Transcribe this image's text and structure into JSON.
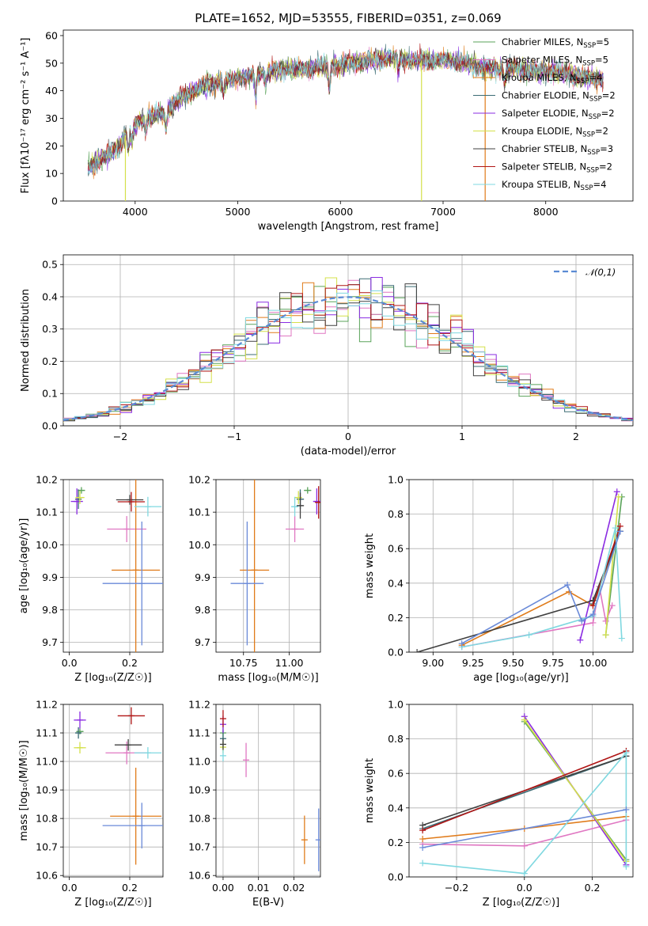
{
  "title": "PLATE=1652, MJD=53555, FIBERID=0351, z=0.069",
  "models": [
    {
      "name": "Chabrier MILES, N",
      "sub": "SSP",
      "tail": "=5",
      "color": "#5aa35a"
    },
    {
      "name": "Salpeter MILES, N",
      "sub": "SSP",
      "tail": "=5",
      "color": "#e077c2"
    },
    {
      "name": "Kroupa MILES, N",
      "sub": "SSP",
      "tail": "=4",
      "color": "#e07b1a"
    },
    {
      "name": "Chabrier ELODIE, N",
      "sub": "SSP",
      "tail": "=2",
      "color": "#3b6b74"
    },
    {
      "name": "Salpeter ELODIE, N",
      "sub": "SSP",
      "tail": "=2",
      "color": "#8a2be2"
    },
    {
      "name": "Kroupa ELODIE, N",
      "sub": "SSP",
      "tail": "=2",
      "color": "#d4e04a"
    },
    {
      "name": "Chabrier STELIB, N",
      "sub": "SSP",
      "tail": "=3",
      "color": "#404040"
    },
    {
      "name": "Salpeter STELIB, N",
      "sub": "SSP",
      "tail": "=2",
      "color": "#b01515"
    },
    {
      "name": "Kroupa STELIB, N",
      "sub": "SSP",
      "tail": "=4",
      "color": "#7fd8e0"
    }
  ],
  "extra_colors": {
    "blue": "#6a8ad8",
    "line_gray": "#4d4d4d"
  },
  "chart_data": [
    {
      "type": "line",
      "panel": "spectrum",
      "xlabel": "wavelength [Angstrom, rest frame]",
      "ylabel": "Flux [f_λ10^-17 erg cm^-2 s^-1 A^-1]",
      "xlim": [
        3300,
        8850
      ],
      "ylim": [
        0,
        62
      ],
      "xticks": [
        4000,
        5000,
        6000,
        7000,
        8000
      ],
      "yticks": [
        0,
        10,
        20,
        30,
        40,
        50,
        60
      ],
      "x_range": [
        3540,
        8560
      ],
      "continuum": [
        [
          3540,
          12
        ],
        [
          3700,
          16
        ],
        [
          3850,
          20
        ],
        [
          3950,
          27
        ],
        [
          4100,
          30
        ],
        [
          4300,
          32
        ],
        [
          4450,
          38
        ],
        [
          4700,
          42
        ],
        [
          4900,
          44
        ],
        [
          5100,
          45
        ],
        [
          5300,
          47
        ],
        [
          5500,
          48
        ],
        [
          5700,
          48
        ],
        [
          5900,
          49
        ],
        [
          6100,
          50
        ],
        [
          6300,
          51
        ],
        [
          6500,
          52
        ],
        [
          6700,
          51
        ],
        [
          6900,
          51
        ],
        [
          7100,
          51
        ],
        [
          7300,
          49
        ],
        [
          7500,
          48
        ],
        [
          7700,
          48
        ],
        [
          7900,
          47
        ],
        [
          8100,
          47
        ],
        [
          8300,
          45
        ],
        [
          8560,
          44
        ]
      ],
      "spikes": [
        {
          "x": 3905,
          "color": "#d4e04a"
        },
        {
          "x": 6790,
          "color": "#d4e04a"
        },
        {
          "x": 7410,
          "color": "#e07b1a"
        }
      ],
      "grid": false,
      "legend": "top-right"
    },
    {
      "type": "histogram",
      "panel": "residuals",
      "xlabel": "(data-model)/error",
      "ylabel": "Normed distribution",
      "xlim": [
        -2.5,
        2.5
      ],
      "ylim": [
        0,
        0.53
      ],
      "xticks": [
        -2,
        -1,
        0,
        1,
        2
      ],
      "yticks": [
        0.0,
        0.1,
        0.2,
        0.3,
        0.4,
        0.5
      ],
      "bin_width": 0.1,
      "reference": {
        "label": "𝒩(0,1)",
        "color": "#5b8bd4",
        "style": "dashed",
        "mean": 0,
        "sigma": 1
      },
      "grid": true,
      "legend": "top-right"
    },
    {
      "type": "scatter",
      "panel": "age-vs-Z",
      "xlabel": "Z [log₁₀(Z/Z☉)]",
      "ylabel": "age  [log₁₀(age/yr)]",
      "xlim": [
        -0.02,
        0.31
      ],
      "ylim": [
        9.67,
        10.2
      ],
      "xticks": [
        0.0,
        0.2
      ],
      "yticks": [
        9.7,
        9.8,
        9.9,
        10.0,
        10.1,
        10.2
      ],
      "points": [
        {
          "x": 0.04,
          "y": 10.167,
          "xerr": 0.012,
          "yerr": 0.01,
          "color": "#5aa35a"
        },
        {
          "x": 0.19,
          "y": 10.048,
          "xerr": 0.065,
          "yerr": 0.04,
          "color": "#e077c2"
        },
        {
          "x": 0.22,
          "y": 9.922,
          "xerr": 0.08,
          "yerr": 0.31,
          "color": "#e07b1a"
        },
        {
          "x": 0.03,
          "y": 10.14,
          "xerr": 0.01,
          "yerr": 0.03,
          "color": "#3b6b74"
        },
        {
          "x": 0.025,
          "y": 10.133,
          "xerr": 0.02,
          "yerr": 0.04,
          "color": "#8a2be2"
        },
        {
          "x": 0.035,
          "y": 10.145,
          "xerr": 0.015,
          "yerr": 0.02,
          "color": "#d4e04a"
        },
        {
          "x": 0.2,
          "y": 10.138,
          "xerr": 0.045,
          "yerr": 0.015,
          "color": "#404040"
        },
        {
          "x": 0.205,
          "y": 10.132,
          "xerr": 0.045,
          "yerr": 0.03,
          "color": "#b01515"
        },
        {
          "x": 0.26,
          "y": 10.117,
          "xerr": 0.045,
          "yerr": 0.03,
          "color": "#7fd8e0"
        },
        {
          "x": 0.24,
          "y": 9.881,
          "xerr": 0.13,
          "yerr": 0.19,
          "color": "#6a8ad8"
        }
      ],
      "grid": true
    },
    {
      "type": "scatter",
      "panel": "age-vs-mass",
      "xlabel": "mass [log₁₀(M/M☉)]",
      "ylabel": "",
      "xlim": [
        10.6,
        11.17
      ],
      "ylim": [
        9.67,
        10.2
      ],
      "xticks": [
        10.75,
        11.0
      ],
      "yticks": [
        9.7,
        9.8,
        9.9,
        10.0,
        10.1,
        10.2
      ],
      "points": [
        {
          "x": 11.1,
          "y": 10.167,
          "xerr": 0.02,
          "yerr": 0.01,
          "color": "#5aa35a"
        },
        {
          "x": 11.03,
          "y": 10.048,
          "xerr": 0.05,
          "yerr": 0.04,
          "color": "#e077c2"
        },
        {
          "x": 10.81,
          "y": 9.922,
          "xerr": 0.08,
          "yerr": 0.31,
          "color": "#e07b1a"
        },
        {
          "x": 11.06,
          "y": 10.14,
          "xerr": 0.02,
          "yerr": 0.03,
          "color": "#3b6b74"
        },
        {
          "x": 11.15,
          "y": 10.133,
          "xerr": 0.02,
          "yerr": 0.04,
          "color": "#8a2be2"
        },
        {
          "x": 11.05,
          "y": 10.145,
          "xerr": 0.02,
          "yerr": 0.02,
          "color": "#d4e04a"
        },
        {
          "x": 11.06,
          "y": 10.12,
          "xerr": 0.02,
          "yerr": 0.04,
          "color": "#404040"
        },
        {
          "x": 11.16,
          "y": 10.13,
          "xerr": 0.02,
          "yerr": 0.05,
          "color": "#b01515"
        },
        {
          "x": 11.03,
          "y": 10.117,
          "xerr": 0.02,
          "yerr": 0.03,
          "color": "#7fd8e0"
        },
        {
          "x": 10.77,
          "y": 9.881,
          "xerr": 0.09,
          "yerr": 0.19,
          "color": "#6a8ad8"
        }
      ],
      "grid": true
    },
    {
      "type": "line",
      "panel": "mass-weight-vs-age",
      "xlabel": "age  [log₁₀(age/yr)]",
      "ylabel": "mass weight",
      "xlim": [
        8.85,
        10.25
      ],
      "ylim": [
        0,
        1.0
      ],
      "xticks": [
        9.0,
        9.25,
        9.5,
        9.75,
        10.0
      ],
      "yticks": [
        0.0,
        0.2,
        0.4,
        0.6,
        0.8,
        1.0
      ],
      "series": [
        {
          "color": "#5aa35a",
          "pts": [
            [
              10.08,
              0.1
            ],
            [
              10.18,
              0.9
            ]
          ]
        },
        {
          "color": "#e077c2",
          "pts": [
            [
              9.18,
              0.03
            ],
            [
              10.0,
              0.17
            ],
            [
              10.04,
              0.38
            ],
            [
              10.08,
              0.18
            ],
            [
              10.12,
              0.27
            ]
          ]
        },
        {
          "color": "#e07b1a",
          "pts": [
            [
              9.18,
              0.04
            ],
            [
              9.85,
              0.35
            ],
            [
              10.0,
              0.27
            ],
            [
              10.17,
              0.7
            ]
          ]
        },
        {
          "color": "#3b6b74",
          "pts": [
            [
              10.0,
              0.28
            ],
            [
              10.17,
              0.7
            ]
          ]
        },
        {
          "color": "#8a2be2",
          "pts": [
            [
              9.92,
              0.07
            ],
            [
              10.15,
              0.93
            ]
          ]
        },
        {
          "color": "#d4e04a",
          "pts": [
            [
              10.08,
              0.1
            ],
            [
              10.16,
              0.9
            ]
          ]
        },
        {
          "color": "#404040",
          "pts": [
            [
              8.9,
              0.0
            ],
            [
              10.0,
              0.3
            ],
            [
              10.17,
              0.7
            ]
          ]
        },
        {
          "color": "#b01515",
          "pts": [
            [
              10.0,
              0.27
            ],
            [
              10.17,
              0.73
            ]
          ]
        },
        {
          "color": "#7fd8e0",
          "pts": [
            [
              9.18,
              0.03
            ],
            [
              9.6,
              0.1
            ],
            [
              10.0,
              0.21
            ],
            [
              10.14,
              0.72
            ],
            [
              10.18,
              0.08
            ]
          ]
        },
        {
          "color": "#6a8ad8",
          "pts": [
            [
              9.18,
              0.05
            ],
            [
              9.84,
              0.39
            ],
            [
              9.93,
              0.18
            ],
            [
              10.0,
              0.22
            ],
            [
              10.17,
              0.7
            ]
          ]
        }
      ],
      "grid": true
    },
    {
      "type": "scatter",
      "panel": "mass-vs-Z",
      "xlabel": "Z [log₁₀(Z/Z☉)]",
      "ylabel": "mass [log₁₀(M/M☉)]",
      "xlim": [
        -0.02,
        0.31
      ],
      "ylim": [
        10.595,
        11.2
      ],
      "xticks": [
        0.0,
        0.2
      ],
      "yticks": [
        10.6,
        10.7,
        10.8,
        10.9,
        11.0,
        11.1,
        11.2
      ],
      "points": [
        {
          "x": 0.035,
          "y": 11.105,
          "xerr": 0.012,
          "yerr": 0.01,
          "color": "#5aa35a"
        },
        {
          "x": 0.19,
          "y": 11.03,
          "xerr": 0.07,
          "yerr": 0.04,
          "color": "#e077c2"
        },
        {
          "x": 0.22,
          "y": 10.808,
          "xerr": 0.085,
          "yerr": 0.17,
          "color": "#e07b1a"
        },
        {
          "x": 0.03,
          "y": 11.1,
          "xerr": 0.01,
          "yerr": 0.02,
          "color": "#3b6b74"
        },
        {
          "x": 0.035,
          "y": 11.145,
          "xerr": 0.02,
          "yerr": 0.03,
          "color": "#8a2be2"
        },
        {
          "x": 0.035,
          "y": 11.048,
          "xerr": 0.02,
          "yerr": 0.02,
          "color": "#d4e04a"
        },
        {
          "x": 0.195,
          "y": 11.058,
          "xerr": 0.045,
          "yerr": 0.02,
          "color": "#404040"
        },
        {
          "x": 0.205,
          "y": 11.16,
          "xerr": 0.045,
          "yerr": 0.03,
          "color": "#b01515"
        },
        {
          "x": 0.26,
          "y": 11.03,
          "xerr": 0.045,
          "yerr": 0.02,
          "color": "#7fd8e0"
        },
        {
          "x": 0.24,
          "y": 10.775,
          "xerr": 0.13,
          "yerr": 0.08,
          "color": "#6a8ad8"
        }
      ],
      "grid": true
    },
    {
      "type": "scatter",
      "panel": "mass-vs-EBV",
      "xlabel": "E(B-V)",
      "ylabel": "",
      "xlim": [
        -0.002,
        0.0275
      ],
      "ylim": [
        10.595,
        11.2
      ],
      "xticks": [
        0.0,
        0.01,
        0.02
      ],
      "yticks": [
        10.6,
        10.7,
        10.8,
        10.9,
        11.0,
        11.1,
        11.2
      ],
      "points": [
        {
          "x": 0.0,
          "y": 11.1,
          "xerr": 0,
          "yerr": 0.02,
          "color": "#5aa35a"
        },
        {
          "x": 0.0065,
          "y": 11.005,
          "xerr": 0,
          "yerr": 0.06,
          "color": "#e077c2"
        },
        {
          "x": 0.023,
          "y": 10.725,
          "xerr": 0,
          "yerr": 0.085,
          "color": "#e07b1a"
        },
        {
          "x": 0.0,
          "y": 11.08,
          "xerr": 0,
          "yerr": 0.03,
          "color": "#3b6b74"
        },
        {
          "x": 0.0,
          "y": 11.13,
          "xerr": 0,
          "yerr": 0.03,
          "color": "#8a2be2"
        },
        {
          "x": 0.0,
          "y": 11.05,
          "xerr": 0,
          "yerr": 0.02,
          "color": "#d4e04a"
        },
        {
          "x": 0.0,
          "y": 11.06,
          "xerr": 0,
          "yerr": 0.02,
          "color": "#404040"
        },
        {
          "x": 0.0,
          "y": 11.15,
          "xerr": 0,
          "yerr": 0.03,
          "color": "#b01515"
        },
        {
          "x": 0.0,
          "y": 11.02,
          "xerr": 0,
          "yerr": 0.02,
          "color": "#7fd8e0"
        },
        {
          "x": 0.027,
          "y": 10.725,
          "xerr": 0,
          "yerr": 0.11,
          "color": "#6a8ad8"
        }
      ],
      "grid": true
    },
    {
      "type": "line",
      "panel": "mass-weight-vs-Z",
      "xlabel": "Z [log₁₀(Z/Z☉)]",
      "ylabel": "mass weight",
      "xlim": [
        -0.34,
        0.32
      ],
      "ylim": [
        0,
        1.0
      ],
      "xticks": [
        -0.2,
        0.0,
        0.2
      ],
      "yticks": [
        0.0,
        0.2,
        0.4,
        0.6,
        0.8,
        1.0
      ],
      "series": [
        {
          "color": "#5aa35a",
          "pts": [
            [
              0.0,
              0.9
            ],
            [
              0.3,
              0.1
            ]
          ]
        },
        {
          "color": "#e077c2",
          "pts": [
            [
              -0.3,
              0.19
            ],
            [
              0.0,
              0.18
            ],
            [
              0.3,
              0.33
            ]
          ]
        },
        {
          "color": "#e07b1a",
          "pts": [
            [
              -0.3,
              0.22
            ],
            [
              0.0,
              0.28
            ],
            [
              0.3,
              0.35
            ]
          ]
        },
        {
          "color": "#3b6b74",
          "pts": [
            [
              -0.3,
              0.28
            ],
            [
              0.3,
              0.7
            ]
          ]
        },
        {
          "color": "#8a2be2",
          "pts": [
            [
              0.0,
              0.93
            ],
            [
              0.3,
              0.07
            ]
          ]
        },
        {
          "color": "#d4e04a",
          "pts": [
            [
              0.0,
              0.91
            ],
            [
              0.3,
              0.09
            ]
          ]
        },
        {
          "color": "#404040",
          "pts": [
            [
              -0.3,
              0.3
            ],
            [
              0.3,
              0.7
            ]
          ]
        },
        {
          "color": "#b01515",
          "pts": [
            [
              -0.3,
              0.27
            ],
            [
              0.3,
              0.73
            ]
          ]
        },
        {
          "color": "#7fd8e0",
          "pts": [
            [
              -0.3,
              0.08
            ],
            [
              0.0,
              0.02
            ],
            [
              0.3,
              0.72
            ],
            [
              0.3,
              0.06
            ]
          ]
        },
        {
          "color": "#6a8ad8",
          "pts": [
            [
              -0.3,
              0.17
            ],
            [
              0.3,
              0.39
            ]
          ]
        }
      ],
      "grid": true
    }
  ]
}
